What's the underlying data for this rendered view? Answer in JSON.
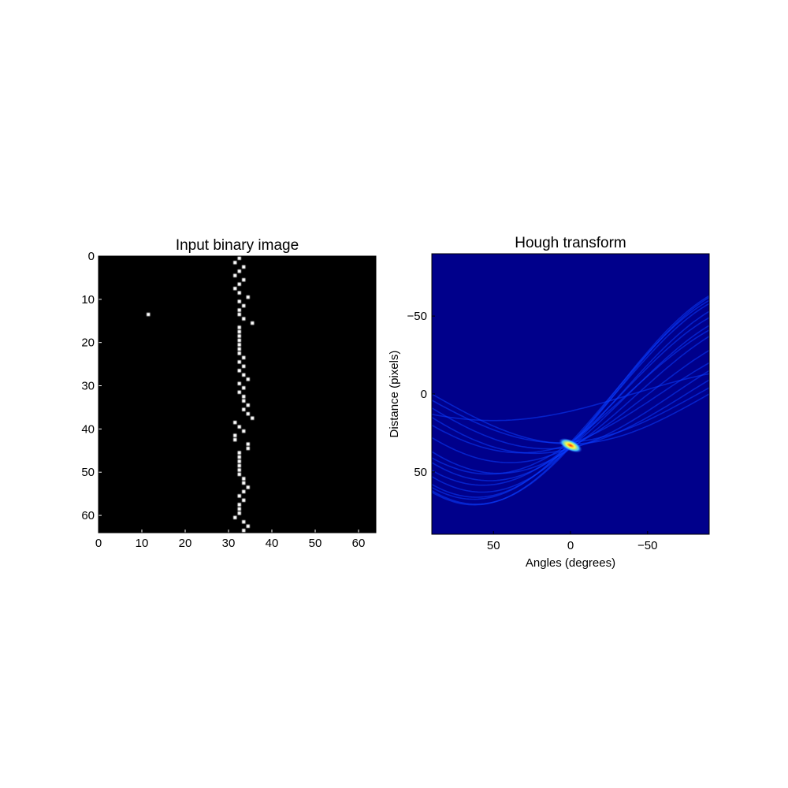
{
  "chart_data": [
    {
      "type": "heatmap",
      "title": "Input binary image",
      "xlabel": "",
      "ylabel": "",
      "xlim": [
        0,
        64
      ],
      "ylim": [
        64,
        0
      ],
      "xticks": [
        "0",
        "10",
        "20",
        "30",
        "40",
        "50",
        "60"
      ],
      "yticks": [
        "0",
        "10",
        "20",
        "30",
        "40",
        "50",
        "60"
      ],
      "background": "#000000",
      "pixel_color": "#ffffff",
      "grid": false,
      "outlier_point": {
        "x": 11,
        "y": 13
      },
      "line_points": [
        {
          "x": 32,
          "y": 0
        },
        {
          "x": 31,
          "y": 1
        },
        {
          "x": 33,
          "y": 2
        },
        {
          "x": 32,
          "y": 3
        },
        {
          "x": 31,
          "y": 4
        },
        {
          "x": 33,
          "y": 5
        },
        {
          "x": 32,
          "y": 6
        },
        {
          "x": 31,
          "y": 7
        },
        {
          "x": 32,
          "y": 8
        },
        {
          "x": 34,
          "y": 9
        },
        {
          "x": 32,
          "y": 10
        },
        {
          "x": 33,
          "y": 11
        },
        {
          "x": 32,
          "y": 12
        },
        {
          "x": 32,
          "y": 13
        },
        {
          "x": 33,
          "y": 14
        },
        {
          "x": 35,
          "y": 15
        },
        {
          "x": 32,
          "y": 16
        },
        {
          "x": 32,
          "y": 17
        },
        {
          "x": 32,
          "y": 18
        },
        {
          "x": 32,
          "y": 19
        },
        {
          "x": 32,
          "y": 20
        },
        {
          "x": 32,
          "y": 21
        },
        {
          "x": 32,
          "y": 22
        },
        {
          "x": 33,
          "y": 23
        },
        {
          "x": 32,
          "y": 24
        },
        {
          "x": 33,
          "y": 25
        },
        {
          "x": 32,
          "y": 26
        },
        {
          "x": 33,
          "y": 27
        },
        {
          "x": 34,
          "y": 28
        },
        {
          "x": 32,
          "y": 29
        },
        {
          "x": 33,
          "y": 30
        },
        {
          "x": 32,
          "y": 31
        },
        {
          "x": 33,
          "y": 32
        },
        {
          "x": 33,
          "y": 33
        },
        {
          "x": 34,
          "y": 34
        },
        {
          "x": 33,
          "y": 35
        },
        {
          "x": 34,
          "y": 36
        },
        {
          "x": 35,
          "y": 37
        },
        {
          "x": 31,
          "y": 38
        },
        {
          "x": 32,
          "y": 39
        },
        {
          "x": 33,
          "y": 40
        },
        {
          "x": 31,
          "y": 41
        },
        {
          "x": 31,
          "y": 42
        },
        {
          "x": 34,
          "y": 43
        },
        {
          "x": 34,
          "y": 44
        },
        {
          "x": 32,
          "y": 45
        },
        {
          "x": 32,
          "y": 46
        },
        {
          "x": 32,
          "y": 47
        },
        {
          "x": 32,
          "y": 48
        },
        {
          "x": 32,
          "y": 49
        },
        {
          "x": 32,
          "y": 50
        },
        {
          "x": 33,
          "y": 51
        },
        {
          "x": 33,
          "y": 52
        },
        {
          "x": 34,
          "y": 53
        },
        {
          "x": 33,
          "y": 54
        },
        {
          "x": 32,
          "y": 55
        },
        {
          "x": 33,
          "y": 56
        },
        {
          "x": 32,
          "y": 57
        },
        {
          "x": 32,
          "y": 58
        },
        {
          "x": 32,
          "y": 59
        },
        {
          "x": 31,
          "y": 60
        },
        {
          "x": 33,
          "y": 61
        },
        {
          "x": 34,
          "y": 62
        },
        {
          "x": 33,
          "y": 63
        }
      ]
    },
    {
      "type": "heatmap",
      "title": "Hough transform",
      "xlabel": "Angles (degrees)",
      "ylabel": "Distance (pixels)",
      "xlim": [
        90,
        -90
      ],
      "ylim": [
        90,
        -90
      ],
      "xticks": [
        {
          "value": 50,
          "label": "50"
        },
        {
          "value": 0,
          "label": "0"
        },
        {
          "value": -50,
          "label": "−50"
        }
      ],
      "yticks": [
        {
          "value": -50,
          "label": "−50"
        },
        {
          "value": 0,
          "label": "0"
        },
        {
          "value": 50,
          "label": "50"
        }
      ],
      "colormap": "jet",
      "background": "#00008b",
      "grid": false,
      "peak": {
        "angle": 0,
        "distance": 33
      },
      "curve_samples": [
        {
          "x": 32,
          "y": 0
        },
        {
          "x": 31,
          "y": 4
        },
        {
          "x": 34,
          "y": 9
        },
        {
          "x": 11,
          "y": 13
        },
        {
          "x": 35,
          "y": 15
        },
        {
          "x": 32,
          "y": 20
        },
        {
          "x": 34,
          "y": 28
        },
        {
          "x": 35,
          "y": 37
        },
        {
          "x": 31,
          "y": 41
        },
        {
          "x": 34,
          "y": 44
        },
        {
          "x": 32,
          "y": 49
        },
        {
          "x": 34,
          "y": 53
        },
        {
          "x": 32,
          "y": 58
        },
        {
          "x": 31,
          "y": 60
        },
        {
          "x": 34,
          "y": 62
        },
        {
          "x": 33,
          "y": 63
        }
      ]
    }
  ]
}
